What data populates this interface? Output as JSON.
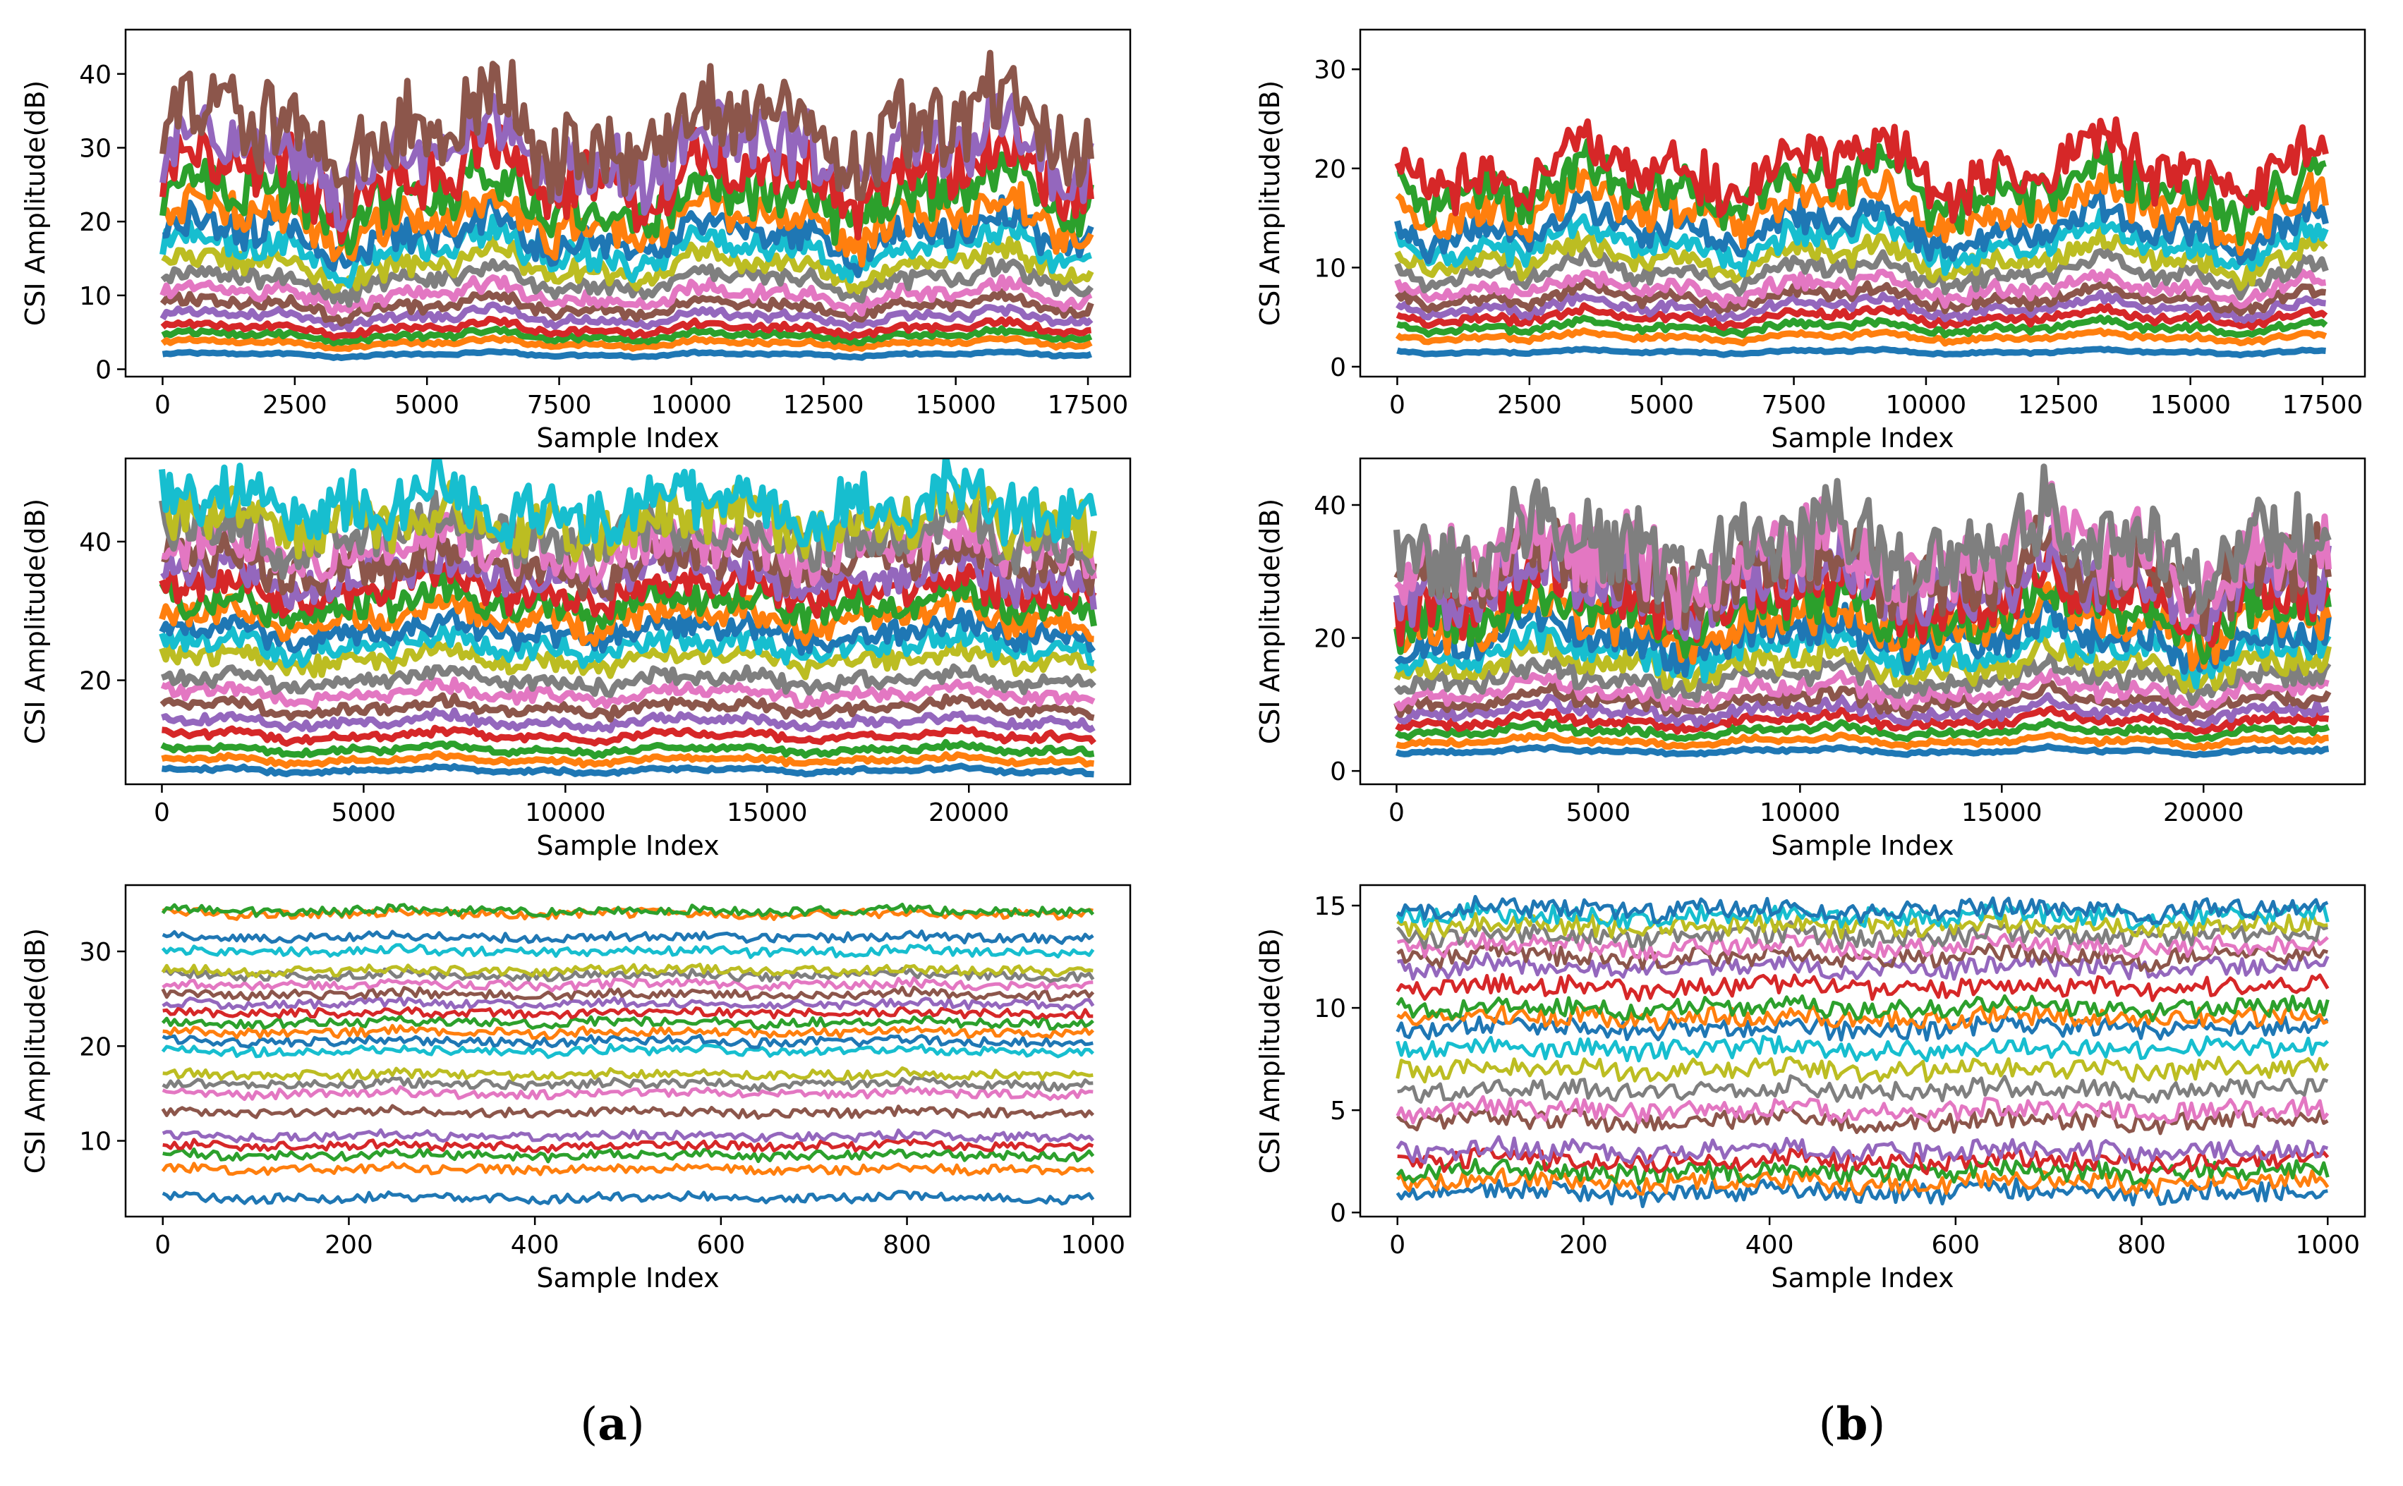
{
  "figure": {
    "colors": [
      "#1f77b4",
      "#ff7f0e",
      "#2ca02c",
      "#d62728",
      "#9467bd",
      "#8c564b",
      "#e377c2",
      "#7f7f7f",
      "#bcbd22",
      "#17becf"
    ],
    "captions": {
      "a": {
        "open": "(",
        "letter": "a",
        "close": ")"
      },
      "b": {
        "open": "(",
        "letter": "b",
        "close": ")"
      }
    }
  },
  "chart_data": [
    {
      "id": "a1",
      "type": "line",
      "title": "",
      "xlabel": "Sample Index",
      "ylabel": "CSI Amplitude(dB)",
      "xlim": [
        -700,
        18300
      ],
      "ylim": [
        -1,
        46
      ],
      "xticks": [
        0,
        2500,
        5000,
        7500,
        10000,
        12500,
        15000,
        17500
      ],
      "yticks": [
        0,
        10,
        20,
        30,
        40
      ],
      "grid": false,
      "legend": "none",
      "series_description": "dense multi-subcarrier CSI traces",
      "n_points": 17560,
      "base_levels": [
        2,
        3.5,
        4.5,
        5.5,
        7,
        8.5,
        10,
        12,
        14,
        16,
        18,
        20,
        23,
        26,
        29,
        32
      ],
      "volatility": "high"
    },
    {
      "id": "a2",
      "type": "line",
      "title": "",
      "xlabel": "Sample Index",
      "ylabel": "CSI Amplitude(dB)",
      "xlim": [
        -900,
        24000
      ],
      "ylim": [
        5,
        52
      ],
      "xticks": [
        0,
        5000,
        10000,
        15000,
        20000
      ],
      "yticks": [
        20,
        40
      ],
      "grid": false,
      "legend": "none",
      "series_description": "banded multi-subcarrier CSI traces",
      "n_points": 23100,
      "base_levels": [
        7,
        8.5,
        10,
        12,
        14,
        16,
        18,
        20,
        23,
        25,
        27,
        29,
        31,
        33,
        35,
        37,
        39,
        41,
        43,
        45
      ],
      "volatility": "medium"
    },
    {
      "id": "a3",
      "type": "line",
      "title": "",
      "xlabel": "Sample Index",
      "ylabel": "CSI Amplitude(dB)",
      "xlim": [
        -40,
        1040
      ],
      "ylim": [
        2,
        37
      ],
      "xticks": [
        0,
        200,
        400,
        600,
        800,
        1000
      ],
      "yticks": [
        10,
        20,
        30
      ],
      "grid": false,
      "legend": "none",
      "series_description": "separated subcarrier traces",
      "n_points": 1000,
      "base_levels": [
        4,
        7,
        8.5,
        9.5,
        10.5,
        13,
        15,
        16,
        17,
        19.5,
        20.5,
        21.5,
        22.5,
        23.5,
        24.5,
        25.5,
        26.5,
        27.5,
        28,
        30,
        31.5,
        34,
        34.3
      ],
      "volatility": "low"
    },
    {
      "id": "b1",
      "type": "line",
      "title": "",
      "xlabel": "Sample Index",
      "ylabel": "CSI Amplitude(dB)",
      "xlim": [
        -700,
        18300
      ],
      "ylim": [
        -1,
        34
      ],
      "xticks": [
        0,
        2500,
        5000,
        7500,
        10000,
        12500,
        15000,
        17500
      ],
      "yticks": [
        0,
        10,
        20,
        30
      ],
      "grid": false,
      "legend": "none",
      "series_description": "dense multi-subcarrier CSI traces",
      "n_points": 17560,
      "base_levels": [
        1.5,
        3,
        4,
        5,
        6,
        7,
        8,
        9.5,
        11,
        12.5,
        14,
        16,
        18,
        20
      ],
      "volatility": "high"
    },
    {
      "id": "b2",
      "type": "line",
      "title": "",
      "xlabel": "Sample Index",
      "ylabel": "CSI Amplitude(dB)",
      "xlim": [
        -900,
        24000
      ],
      "ylim": [
        -2,
        47
      ],
      "xticks": [
        0,
        5000,
        10000,
        15000,
        20000
      ],
      "yticks": [
        0,
        20,
        40
      ],
      "grid": false,
      "legend": "none",
      "series_description": "dense multi-subcarrier CSI traces",
      "n_points": 23100,
      "base_levels": [
        3,
        4.5,
        6,
        7.5,
        9,
        10.5,
        12,
        14,
        16,
        18,
        20,
        22,
        24,
        26,
        28,
        30,
        32,
        34
      ],
      "volatility": "high"
    },
    {
      "id": "b3",
      "type": "line",
      "title": "",
      "xlabel": "Sample Index",
      "ylabel": "CSI Amplitude(dB)",
      "xlim": [
        -40,
        1040
      ],
      "ylim": [
        -0.2,
        16
      ],
      "xticks": [
        0,
        200,
        400,
        600,
        800,
        1000
      ],
      "yticks": [
        0,
        5,
        10,
        15
      ],
      "grid": false,
      "legend": "none",
      "series_description": "separated subcarrier traces",
      "n_points": 1000,
      "base_levels": [
        1,
        1.5,
        2,
        2.5,
        3,
        4.5,
        5,
        6,
        7,
        8,
        9,
        9.5,
        10,
        11,
        12,
        12.5,
        13,
        13.5,
        14,
        14.5,
        14.8
      ],
      "volatility": "low"
    }
  ]
}
